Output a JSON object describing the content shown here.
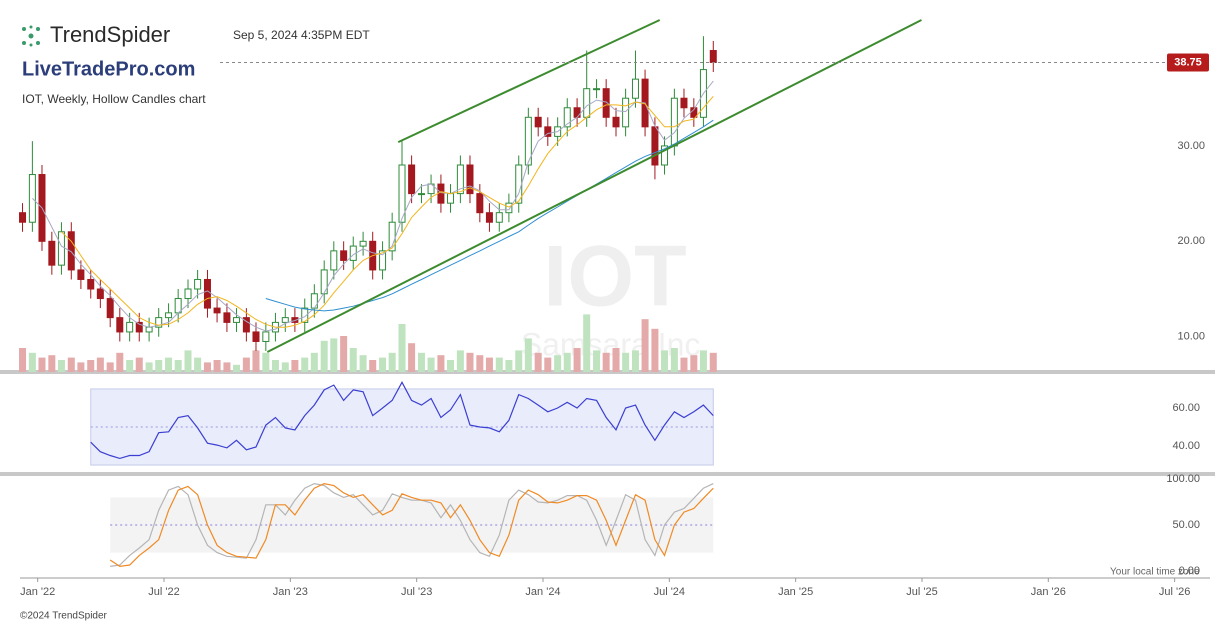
{
  "header": {
    "brand": "TrendSpider",
    "timestamp": "Sep 5, 2024 4:35PM EDT",
    "site": "LiveTradePro.com"
  },
  "footer": {
    "copyright": "©2024 TrendSpider",
    "timezone": "Your local time zone"
  },
  "chart_data": [
    {
      "type": "candlestick",
      "title": "IOT, Weekly, Hollow Candles chart",
      "watermark": "IOT",
      "watermark_subtitle": "Samsara Inc.",
      "x": [
        2021.94,
        2021.979,
        2022.017,
        2022.056,
        2022.094,
        2022.133,
        2022.171,
        2022.21,
        2022.248,
        2022.287,
        2022.325,
        2022.364,
        2022.402,
        2022.441,
        2022.479,
        2022.518,
        2022.556,
        2022.595,
        2022.633,
        2022.672,
        2022.71,
        2022.749,
        2022.787,
        2022.826,
        2022.864,
        2022.903,
        2022.941,
        2022.98,
        2023.018,
        2023.057,
        2023.095,
        2023.134,
        2023.172,
        2023.211,
        2023.249,
        2023.288,
        2023.326,
        2023.365,
        2023.403,
        2023.442,
        2023.48,
        2023.519,
        2023.557,
        2023.596,
        2023.634,
        2023.673,
        2023.711,
        2023.75,
        2023.788,
        2023.827,
        2023.865,
        2023.904,
        2023.942,
        2023.981,
        2024.019,
        2024.058,
        2024.096,
        2024.135,
        2024.173,
        2024.212,
        2024.25,
        2024.289,
        2024.327,
        2024.366,
        2024.404,
        2024.443,
        2024.481,
        2024.52,
        2024.558,
        2024.597,
        2024.635,
        2024.674
      ],
      "open": [
        23,
        22,
        27,
        20,
        17.5,
        21,
        17,
        16,
        15,
        14,
        12,
        10.5,
        11.5,
        10.5,
        11,
        12,
        12.5,
        14,
        15,
        16,
        13,
        12.5,
        11.5,
        12,
        10.5,
        9.5,
        10.5,
        11.5,
        12,
        11.5,
        13,
        14.5,
        17,
        19,
        18,
        19.5,
        20,
        17,
        19,
        22,
        28,
        25,
        25,
        26,
        24,
        25,
        28,
        25,
        23,
        22,
        23,
        24,
        28,
        33,
        32,
        31,
        32,
        34,
        33,
        36,
        36,
        33,
        32,
        35,
        37,
        32,
        28,
        30,
        35,
        34,
        33,
        40
      ],
      "high": [
        24,
        30.5,
        28,
        21,
        22,
        22,
        18,
        17,
        16,
        15,
        13,
        12.5,
        12.5,
        12,
        13,
        13.5,
        15,
        16,
        17,
        17,
        14,
        13.5,
        13,
        13,
        11.5,
        11.5,
        12.5,
        13,
        13,
        14,
        15.5,
        18,
        20,
        20,
        20.5,
        21,
        21,
        20,
        23,
        30.5,
        29,
        26,
        27,
        27,
        26,
        29,
        29,
        26,
        24,
        24,
        25,
        29,
        34,
        34,
        33,
        33,
        35,
        35,
        40,
        37,
        37,
        34,
        36,
        40,
        38,
        33,
        31,
        36,
        36,
        35,
        41.5,
        41
      ],
      "low": [
        21,
        21,
        19,
        16.5,
        16.5,
        16,
        15,
        14,
        13,
        11,
        9.5,
        9.5,
        9.5,
        9.5,
        10,
        11,
        11.5,
        13,
        14,
        12,
        11.5,
        10.5,
        10.5,
        9.5,
        8.5,
        8.5,
        9.5,
        10.5,
        10.5,
        10.5,
        12,
        13.5,
        16,
        17,
        17,
        18.5,
        16,
        16,
        18,
        21,
        24,
        24,
        24,
        23,
        23,
        24,
        24,
        22,
        21,
        21,
        22,
        23,
        27,
        31,
        30,
        30,
        31,
        32,
        32,
        35,
        32,
        31,
        31,
        34,
        31,
        26.5,
        27,
        29,
        33,
        32,
        32,
        37.75
      ],
      "close": [
        22,
        27,
        20,
        17.5,
        21,
        17,
        16,
        15,
        14,
        12,
        10.5,
        11.5,
        10.5,
        11,
        12,
        12.5,
        14,
        15,
        16,
        13,
        12.5,
        11.5,
        12,
        10.5,
        9.5,
        10.5,
        11.5,
        12,
        11.5,
        13,
        14.5,
        17,
        19,
        18,
        19.5,
        20,
        17,
        19,
        22,
        28,
        25,
        25,
        26,
        24,
        25,
        28,
        25,
        23,
        22,
        23,
        24,
        28,
        33,
        32,
        31,
        32,
        34,
        33,
        36,
        36,
        33,
        32,
        35,
        37,
        32,
        28,
        30,
        35,
        34,
        33,
        38,
        38.75
      ],
      "volume": [
        10,
        8,
        6,
        7,
        5,
        6,
        4,
        5,
        6,
        4,
        8,
        5,
        6,
        4,
        5,
        6,
        5,
        9,
        6,
        4,
        5,
        4,
        3,
        6,
        9,
        8,
        5,
        4,
        5,
        6,
        8,
        13,
        14,
        15,
        10,
        7,
        5,
        6,
        8,
        20,
        12,
        8,
        6,
        7,
        5,
        9,
        8,
        7,
        6,
        6,
        5,
        9,
        14,
        8,
        6,
        7,
        8,
        10,
        24,
        9,
        8,
        10,
        8,
        9,
        22,
        18,
        9,
        10,
        6,
        7,
        9,
        8
      ],
      "up_color": "#2e8b3a",
      "down_color": "#a3191f",
      "volume_up_color": "#bfe3bf",
      "volume_down_color": "#e4a9a9",
      "series": [
        {
          "color": "#a8a8c6",
          "values": [
            null,
            24.5,
            23.5,
            21.5,
            19.5,
            18.9,
            17.6,
            16.5,
            15.3,
            14.3,
            13.1,
            12,
            11.3,
            11,
            11.2,
            11.5,
            12.5,
            13.4,
            14.4,
            14.8,
            14.1,
            13.2,
            12.3,
            11.6,
            11,
            10.6,
            10.8,
            11.4,
            11.7,
            12.1,
            13,
            14.6,
            16.4,
            17.6,
            18.6,
            19.2,
            18.8,
            18.6,
            19.5,
            22.4,
            24.6,
            25.8,
            26,
            25.1,
            25,
            25.5,
            25.8,
            25.3,
            24.2,
            23.3,
            23.3,
            25,
            28.3,
            30.5,
            31.3,
            31.5,
            32.3,
            33,
            34.2,
            34.8,
            34.6,
            33.7,
            33.6,
            34.6,
            34.5,
            32.1,
            30.6,
            31.4,
            32.9,
            33.8,
            35.5,
            36.8
          ]
        },
        {
          "color": "#f2b51d",
          "values": [
            null,
            null,
            null,
            null,
            21,
            20,
            18.5,
            17,
            16,
            15,
            14,
            13,
            12,
            11.5,
            11.2,
            11.3,
            11.8,
            12.5,
            13.4,
            14,
            14.2,
            13.8,
            13.2,
            12.5,
            11.8,
            11.3,
            11,
            11,
            11.2,
            11.6,
            12.3,
            13.3,
            14.6,
            15.8,
            17,
            18,
            18.5,
            18.8,
            19.3,
            20.8,
            22.5,
            23.6,
            24.6,
            25.2,
            25,
            25.2,
            25.6,
            25.2,
            24.6,
            24,
            23.6,
            24.2,
            25.8,
            27.6,
            29.2,
            30.4,
            31.5,
            32.2,
            33,
            33.8,
            34.3,
            34.3,
            34.2,
            34.6,
            34.4,
            33.2,
            32,
            32,
            32.6,
            32.8,
            34,
            35.2
          ]
        },
        {
          "color": "#2f8fd0",
          "values": [
            null,
            null,
            null,
            null,
            null,
            null,
            null,
            null,
            null,
            null,
            null,
            null,
            null,
            null,
            null,
            null,
            null,
            null,
            null,
            null,
            null,
            null,
            null,
            null,
            null,
            14,
            13.7,
            13.4,
            13.1,
            12.9,
            12.8,
            12.7,
            12.8,
            13,
            13.2,
            13.5,
            13.8,
            14.1,
            14.5,
            15,
            15.5,
            16,
            16.5,
            17,
            17.5,
            18,
            18.5,
            19,
            19.5,
            20,
            20.5,
            21,
            21.7,
            22.4,
            23,
            23.6,
            24.2,
            24.8,
            25.4,
            26,
            26.6,
            27.2,
            27.8,
            28.4,
            28.9,
            29.3,
            29.7,
            30.2,
            30.8,
            31.4,
            32,
            32.7
          ]
        }
      ],
      "trendlines": [
        {
          "color": "#3d8b2f",
          "x": [
            2023.427,
            2024.462
          ],
          "y": [
            30.4,
            43.2
          ]
        },
        {
          "color": "#3d8b2f",
          "x": [
            2022.909,
            2025.498
          ],
          "y": [
            8.4,
            43.2
          ]
        }
      ],
      "last_price": 38.75,
      "last_price_color": "#b71c1c",
      "xlim": [
        2021.93,
        2026.64
      ],
      "xticks": [
        {
          "value": 2022,
          "label": "Jan '22"
        },
        {
          "value": 2022.5,
          "label": "Jul '22"
        },
        {
          "value": 2023,
          "label": "Jan '23"
        },
        {
          "value": 2023.5,
          "label": "Jul '23"
        },
        {
          "value": 2024,
          "label": "Jan '24"
        },
        {
          "value": 2024.5,
          "label": "Jul '24"
        },
        {
          "value": 2025,
          "label": "Jan '25"
        },
        {
          "value": 2025.5,
          "label": "Jul '25"
        },
        {
          "value": 2026,
          "label": "Jan '26"
        },
        {
          "value": 2026.5,
          "label": "Jul '26"
        }
      ],
      "ylim": [
        6.3,
        43.2
      ],
      "yticks": [
        {
          "value": 10,
          "label": "10.00"
        },
        {
          "value": 20,
          "label": "20.00"
        },
        {
          "value": 30,
          "label": "30.00"
        }
      ]
    },
    {
      "type": "line",
      "color": "#3b3fd1",
      "values": [
        null,
        null,
        null,
        null,
        null,
        null,
        null,
        42,
        37,
        35,
        33.5,
        35,
        35,
        37,
        47,
        47.5,
        55,
        56,
        49.5,
        41.5,
        40.5,
        39,
        43,
        38,
        39.5,
        51,
        55,
        49.5,
        48.5,
        56,
        61.5,
        69.5,
        72,
        64,
        69.5,
        68.5,
        56,
        60,
        64,
        73.5,
        64,
        61.5,
        65,
        55,
        59,
        67,
        51,
        50,
        49.5,
        47.5,
        53.5,
        67,
        65,
        61.5,
        58,
        60,
        63,
        60,
        65,
        64,
        55,
        48.5,
        60,
        61.5,
        51,
        43,
        51,
        58,
        55,
        58,
        61.5,
        56
      ],
      "band": [
        30,
        70
      ],
      "band_color": "#e8ecfb",
      "midline": 50,
      "midline_color": "#9b9bdf",
      "ylim": [
        27.4,
        76.8
      ],
      "yticks": [
        {
          "value": 60,
          "label": "60.00"
        },
        {
          "value": 40,
          "label": "40.00"
        }
      ]
    },
    {
      "type": "line",
      "series": [
        {
          "color": "#b5b5b5",
          "values": [
            null,
            null,
            null,
            null,
            null,
            null,
            null,
            null,
            null,
            5,
            6.5,
            17,
            25,
            34,
            66,
            88,
            92,
            83,
            50,
            28,
            20,
            16,
            15,
            14,
            34,
            72,
            72,
            61,
            77,
            90,
            95,
            93,
            85,
            80,
            83,
            72,
            61,
            66,
            84,
            80,
            77,
            77,
            74,
            58,
            72,
            55,
            34,
            20,
            16,
            39,
            77,
            88,
            83,
            75,
            74,
            77,
            82,
            82,
            77,
            55,
            28,
            55,
            83,
            77,
            34,
            17,
            50,
            64,
            68,
            79,
            90,
            95
          ]
        },
        {
          "color": "#f08a24",
          "values": [
            null,
            null,
            null,
            null,
            null,
            null,
            null,
            null,
            null,
            12,
            5,
            6.5,
            17,
            25,
            34,
            66,
            88,
            92,
            83,
            50,
            28,
            20,
            16,
            15,
            14,
            34,
            72,
            72,
            61,
            77,
            90,
            95,
            93,
            85,
            80,
            83,
            72,
            61,
            66,
            84,
            80,
            77,
            77,
            74,
            58,
            72,
            55,
            34,
            20,
            16,
            39,
            77,
            88,
            83,
            75,
            74,
            77,
            82,
            82,
            77,
            55,
            28,
            55,
            83,
            77,
            34,
            17,
            50,
            64,
            68,
            79,
            90
          ]
        }
      ],
      "band": [
        20,
        80
      ],
      "band_color": "#f3f3f3",
      "midline": 50,
      "midline_color": "#8a7fd8",
      "ylim": [
        -7.6,
        103.3
      ],
      "yticks": [
        {
          "value": 100,
          "label": "100.00"
        },
        {
          "value": 50,
          "label": "50.00"
        },
        {
          "value": 0,
          "label": "0.00"
        }
      ]
    }
  ]
}
